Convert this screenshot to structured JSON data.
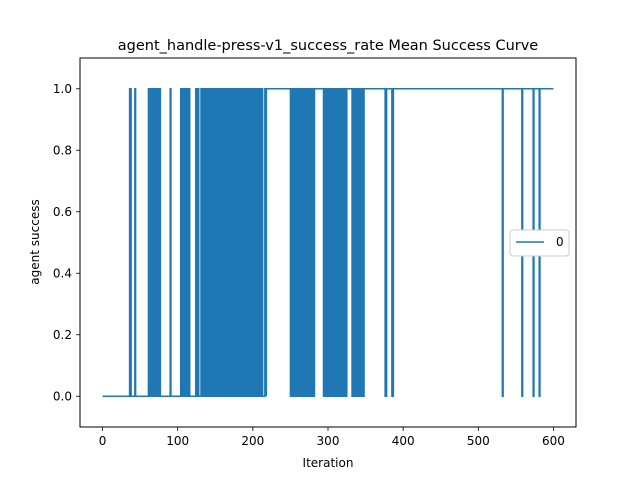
{
  "chart_data": {
    "type": "line",
    "title": "agent_handle-press-v1_success_rate Mean Success Curve",
    "xlabel": "Iteration",
    "ylabel": "agent success",
    "xlim": [
      -30,
      630
    ],
    "ylim": [
      -0.1,
      1.1
    ],
    "xticks": [
      0,
      100,
      200,
      300,
      400,
      500,
      600
    ],
    "yticks": [
      0.0,
      0.2,
      0.4,
      0.6,
      0.8,
      1.0
    ],
    "xtick_labels": [
      "0",
      "100",
      "200",
      "300",
      "400",
      "500",
      "600"
    ],
    "ytick_labels": [
      "0.0",
      "0.2",
      "0.4",
      "0.6",
      "0.8",
      "1.0"
    ],
    "grid": false,
    "legend_position": "center-right",
    "series": [
      {
        "name": "0",
        "color": "#1f77b4",
        "pulses": [
          [
            36,
            38
          ],
          [
            43,
            44
          ],
          [
            61,
            62
          ],
          [
            63,
            64
          ],
          [
            65,
            66
          ],
          [
            67,
            69
          ],
          [
            70,
            71
          ],
          [
            72,
            74
          ],
          [
            75,
            77
          ],
          [
            90,
            91
          ],
          [
            104,
            105
          ],
          [
            107,
            108
          ],
          [
            110,
            111
          ],
          [
            112,
            114
          ],
          [
            115,
            116
          ],
          [
            124,
            125
          ],
          [
            127,
            128
          ],
          [
            131,
            132
          ],
          [
            133,
            134
          ],
          [
            135,
            137
          ],
          [
            138,
            139
          ],
          [
            140,
            142
          ],
          [
            143,
            144
          ],
          [
            145,
            147
          ],
          [
            148,
            150
          ],
          [
            151,
            152
          ],
          [
            153,
            155
          ],
          [
            156,
            158
          ],
          [
            159,
            160
          ],
          [
            161,
            163
          ],
          [
            164,
            165
          ],
          [
            166,
            168
          ],
          [
            169,
            170
          ],
          [
            171,
            173
          ],
          [
            174,
            175
          ],
          [
            176,
            178
          ],
          [
            179,
            180
          ],
          [
            181,
            183
          ],
          [
            184,
            186
          ],
          [
            187,
            188
          ],
          [
            189,
            191
          ],
          [
            192,
            194
          ],
          [
            195,
            196
          ],
          [
            198,
            200
          ],
          [
            202,
            204
          ],
          [
            206,
            207
          ],
          [
            208,
            210
          ],
          [
            212,
            213
          ],
          [
            216,
            218
          ],
          [
            250,
            251
          ],
          [
            253,
            254
          ],
          [
            256,
            257
          ],
          [
            259,
            261
          ],
          [
            262,
            264
          ],
          [
            265,
            266
          ],
          [
            268,
            269
          ],
          [
            271,
            272
          ],
          [
            274,
            275
          ],
          [
            277,
            279
          ],
          [
            281,
            282
          ],
          [
            294,
            296
          ],
          [
            297,
            298
          ],
          [
            300,
            301
          ],
          [
            302,
            303
          ],
          [
            305,
            306
          ],
          [
            307,
            309
          ],
          [
            310,
            311
          ],
          [
            312,
            313
          ],
          [
            315,
            316
          ],
          [
            317,
            319
          ],
          [
            321,
            322
          ],
          [
            323,
            325
          ],
          [
            332,
            334
          ],
          [
            335,
            336
          ],
          [
            338,
            339
          ],
          [
            340,
            341
          ],
          [
            342,
            343
          ],
          [
            344,
            345
          ],
          [
            346,
            348
          ],
          [
            376,
            378
          ],
          [
            385,
            387
          ],
          [
            532,
            533
          ],
          [
            558,
            559
          ],
          [
            573,
            574
          ],
          [
            581,
            582
          ]
        ],
        "pulse_value": 1.0,
        "base_value": 0.0,
        "x_start": 0,
        "x_end": 600,
        "final_value": 1.0,
        "notes_for_reconstruction": "0 until x=36; alternating 0/1 pulses; mostly 1 from x~218 to 600 with drops to 0 in the listed gaps"
      }
    ]
  }
}
